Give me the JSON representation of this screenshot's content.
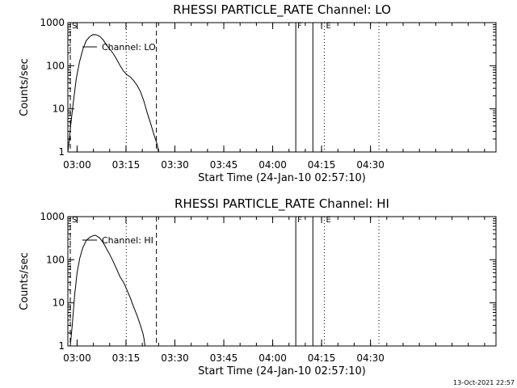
{
  "footer_timestamp": "13-Oct-2021 22:57",
  "chart_data": [
    {
      "type": "line",
      "title": "RHESSI PARTICLE_RATE Channel: LO",
      "xlabel": "Start Time (24-Jan-10 02:57:10)",
      "ylabel": "Counts/sec",
      "ylog": true,
      "ylim": [
        1,
        1000
      ],
      "xlim": [
        "02:57:10",
        "05:08:30"
      ],
      "xticks": [
        "03:00",
        "03:15",
        "03:30",
        "03:45",
        "04:00",
        "04:15",
        "04:30"
      ],
      "yticks": [
        "1",
        "10",
        "100",
        "1000"
      ],
      "legend": "Channel: LO",
      "series": [
        {
          "name": "Channel: LO",
          "x": [
            "02:57:10",
            "02:57:38",
            "02:58:00",
            "02:58:44",
            "02:59:45",
            "03:00:42",
            "03:01:45",
            "03:02:47",
            "03:03:50",
            "03:04:52",
            "03:05:55",
            "03:06:57",
            "03:08:00",
            "03:09:02",
            "03:10:05",
            "03:11:07",
            "03:12:10",
            "03:13:12",
            "03:14:15",
            "03:15:17",
            "03:16:20",
            "03:17:22",
            "03:18:25",
            "03:19:27",
            "03:20:30",
            "03:21:32",
            "03:22:35",
            "03:23:37",
            "03:24:35",
            "03:24:58"
          ],
          "y": [
            1,
            2,
            4,
            12,
            50,
            120,
            240,
            380,
            470,
            530,
            520,
            480,
            400,
            300,
            240,
            190,
            140,
            100,
            75,
            62,
            55,
            45,
            35,
            25,
            15,
            8,
            4.5,
            2.5,
            1.5,
            1
          ]
        }
      ],
      "markers": [
        {
          "label": "S",
          "time": "02:57:55",
          "style": "dashed",
          "letter_side": "right"
        },
        {
          "label": "",
          "time": "02:57:10",
          "style": "dashed",
          "letter_side": "right"
        },
        {
          "label": "",
          "time": "03:15:05",
          "style": "dotted"
        },
        {
          "label": "",
          "time": "03:24:20",
          "style": "dashed"
        },
        {
          "label": "F",
          "time": "04:07:05",
          "style": "solid"
        },
        {
          "label": "",
          "time": "04:12:20",
          "style": "solid"
        },
        {
          "label": "E",
          "time": "04:15:50",
          "style": "dotted"
        },
        {
          "label": "",
          "time": "04:32:35",
          "style": "dotted"
        }
      ]
    },
    {
      "type": "line",
      "title": "RHESSI PARTICLE_RATE Channel: HI",
      "xlabel": "Start Time (24-Jan-10 02:57:10)",
      "ylabel": "Counts/sec",
      "ylog": true,
      "ylim": [
        1,
        1000
      ],
      "xlim": [
        "02:57:10",
        "05:08:30"
      ],
      "xticks": [
        "03:00",
        "03:15",
        "03:30",
        "03:45",
        "04:00",
        "04:15",
        "04:30"
      ],
      "yticks": [
        "1",
        "10",
        "100",
        "1000"
      ],
      "legend": "Channel: HI",
      "series": [
        {
          "name": "Channel: HI",
          "x": [
            "02:57:55",
            "02:58:30",
            "02:59:15",
            "03:00:00",
            "03:00:50",
            "03:01:45",
            "03:02:47",
            "03:03:50",
            "03:04:52",
            "03:05:30",
            "03:05:55",
            "03:06:57",
            "03:08:00",
            "03:09:02",
            "03:10:05",
            "03:11:07",
            "03:12:10",
            "03:13:12",
            "03:14:15",
            "03:15:17",
            "03:16:20",
            "03:17:22",
            "03:18:25",
            "03:19:27",
            "03:20:10",
            "03:20:30",
            "03:20:50"
          ],
          "y": [
            1,
            3,
            15,
            50,
            110,
            190,
            280,
            330,
            360,
            370,
            360,
            320,
            250,
            180,
            130,
            90,
            60,
            40,
            30,
            20,
            13,
            8,
            5,
            3,
            2,
            1.5,
            1
          ]
        }
      ],
      "markers": [
        {
          "label": "S",
          "time": "02:57:55",
          "style": "dashed",
          "letter_side": "right"
        },
        {
          "label": "",
          "time": "02:57:10",
          "style": "dashed",
          "letter_side": "right"
        },
        {
          "label": "",
          "time": "03:15:05",
          "style": "dotted"
        },
        {
          "label": "",
          "time": "03:24:20",
          "style": "dashed"
        },
        {
          "label": "F",
          "time": "04:07:05",
          "style": "solid"
        },
        {
          "label": "",
          "time": "04:12:20",
          "style": "solid"
        },
        {
          "label": "E",
          "time": "04:15:50",
          "style": "dotted"
        },
        {
          "label": "",
          "time": "04:32:35",
          "style": "dotted"
        }
      ]
    }
  ]
}
